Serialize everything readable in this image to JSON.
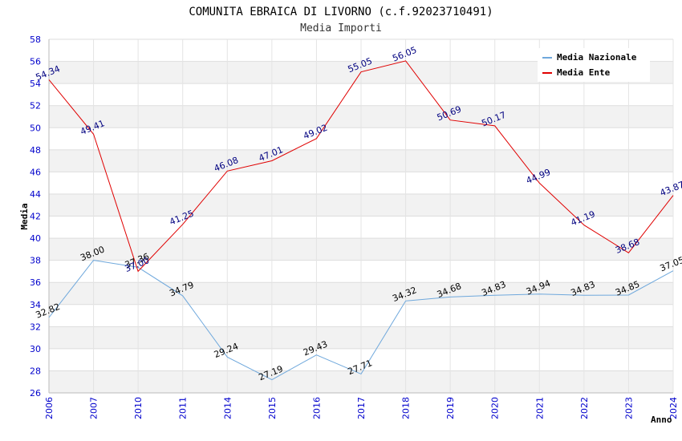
{
  "chart_data": {
    "type": "line",
    "title": "COMUNITA EBRAICA DI LIVORNO (c.f.92023710491)",
    "subtitle": "Media Importi",
    "xlabel": "Anno",
    "ylabel": "Media",
    "ylim": [
      26,
      58
    ],
    "ytick_step": 2,
    "grid": true,
    "legend_position": "top-right",
    "categories": [
      "2006",
      "2007",
      "2010",
      "2011",
      "2014",
      "2015",
      "2016",
      "2017",
      "2018",
      "2019",
      "2020",
      "2021",
      "2022",
      "2023",
      "2024"
    ],
    "series": [
      {
        "name": "Media Nazionale",
        "color": "#6fa8dc",
        "label_color": "#000000",
        "values": [
          32.82,
          38.0,
          37.36,
          34.79,
          29.24,
          27.19,
          29.43,
          27.71,
          34.32,
          34.68,
          34.83,
          34.94,
          34.83,
          34.85,
          37.05
        ]
      },
      {
        "name": "Media Ente",
        "color": "#e00000",
        "label_color": "#000080",
        "values": [
          54.34,
          49.41,
          37.0,
          41.25,
          46.08,
          47.01,
          49.02,
          55.05,
          56.05,
          50.69,
          50.17,
          44.99,
          41.19,
          38.68,
          43.87
        ]
      }
    ]
  }
}
